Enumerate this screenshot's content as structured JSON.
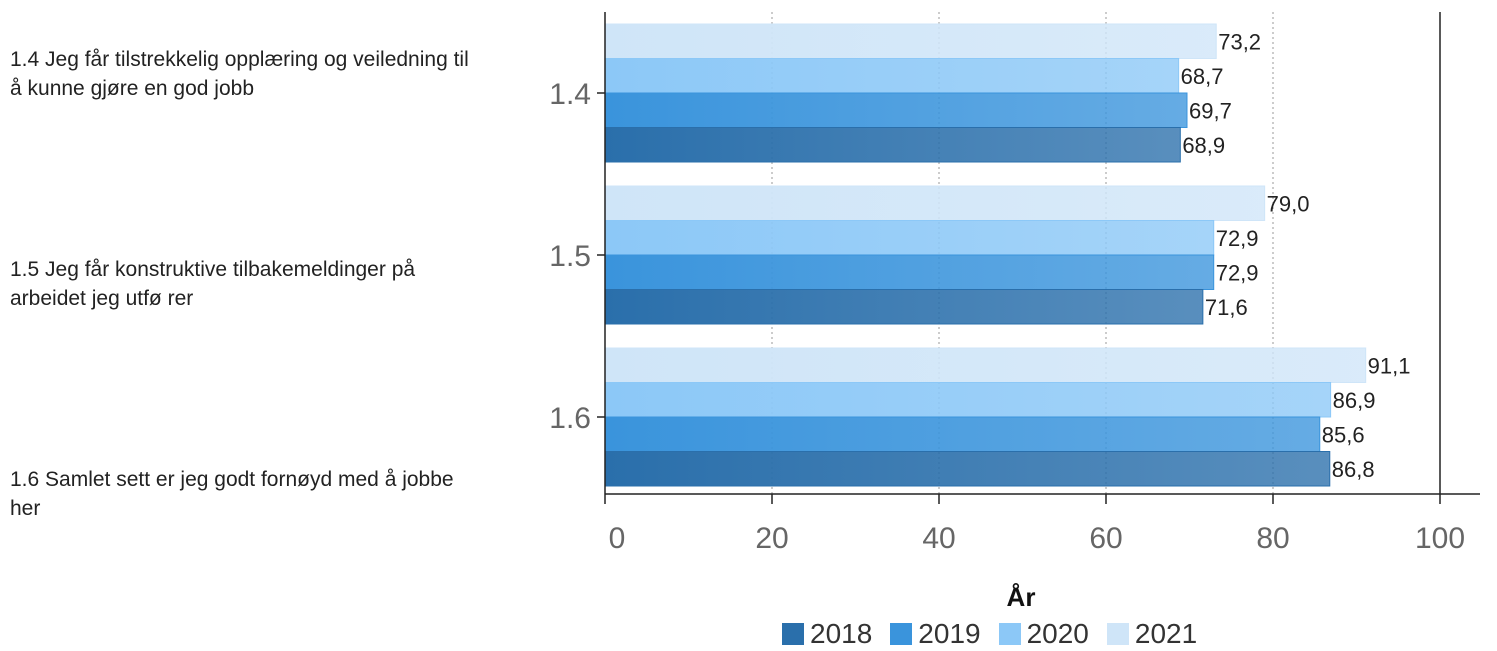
{
  "questions": [
    {
      "id": "1.4",
      "text": "1.4 Jeg får tilstrekkelig opplæring og veiledning til å kunne gjøre en god jobb"
    },
    {
      "id": "1.5",
      "text": "1.5 Jeg får konstruktive tilbakemeldinger på arbeidet jeg utfø rer"
    },
    {
      "id": "1.6",
      "text": "1.6 Samlet sett er jeg godt fornøyd med å jobbe her"
    }
  ],
  "chart_data": {
    "type": "bar",
    "orientation": "horizontal",
    "categories": [
      "1.4",
      "1.5",
      "1.6"
    ],
    "series": [
      {
        "name": "2021",
        "color": "#cfe5f8",
        "values": [
          73.2,
          79.0,
          91.1
        ],
        "labels": [
          "73,2",
          "79,0",
          "91,1"
        ]
      },
      {
        "name": "2020",
        "color": "#8cc8f7",
        "values": [
          68.7,
          72.9,
          86.9
        ],
        "labels": [
          "68,7",
          "72,9",
          "86,9"
        ]
      },
      {
        "name": "2019",
        "color": "#3a94dc",
        "values": [
          69.7,
          72.9,
          85.6
        ],
        "labels": [
          "69,7",
          "72,9",
          "85,6"
        ]
      },
      {
        "name": "2018",
        "color": "#2a6fab",
        "values": [
          68.9,
          71.6,
          86.8
        ],
        "labels": [
          "68,9",
          "71,6",
          "86,8"
        ]
      }
    ],
    "xlim": [
      0,
      100
    ],
    "xticks": [
      "0",
      "20",
      "40",
      "60",
      "80",
      "100"
    ],
    "grid": true,
    "legend_title": "År",
    "legend": [
      {
        "label": "2018",
        "color": "#2a6fab"
      },
      {
        "label": "2019",
        "color": "#3a94dc"
      },
      {
        "label": "2020",
        "color": "#8cc8f7"
      },
      {
        "label": "2021",
        "color": "#cfe5f8"
      }
    ],
    "legend_position": "bottom"
  }
}
